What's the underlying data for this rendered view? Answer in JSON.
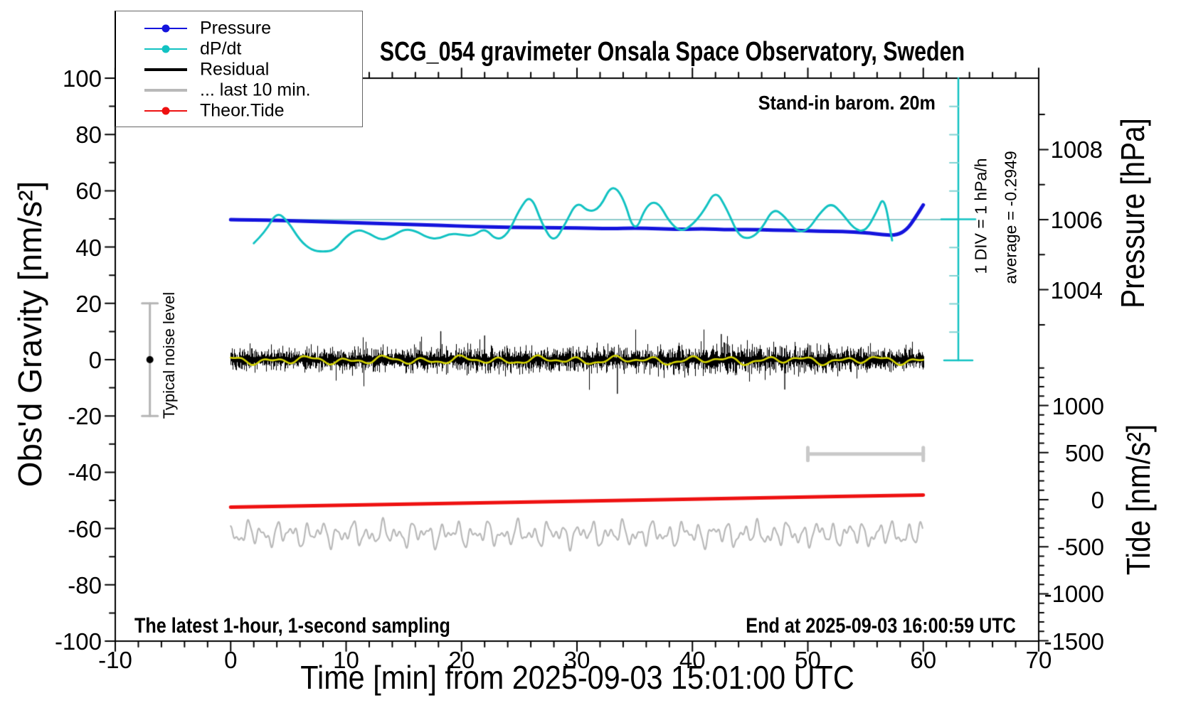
{
  "title": "SCG_054 gravimeter Onsala Space Observatory, Sweden",
  "axis_labels": {
    "left": "Obs'd Gravity [nm/s²]",
    "bottom": "Time [min] from 2025-09-03 15:01:00 UTC",
    "right_pressure": "Pressure [hPa]",
    "right_tide": "Tide [nm/s²]"
  },
  "annotations": {
    "stand_in": "Stand-in barom. 20m",
    "div_scale": "1 DIV = 1 hPa/h",
    "average": "average = -0.2949",
    "noise_level": "Typical noise level",
    "sampling": "The latest 1-hour, 1-second sampling",
    "end_at": "End at 2025-09-03 16:00:59 UTC"
  },
  "legend": {
    "items": [
      {
        "label": "Pressure",
        "color": "#1414dd",
        "dot": true,
        "thickness": 2.5
      },
      {
        "label": "dP/dt",
        "color": "#12c2c2",
        "dot": true,
        "thickness": 2.5
      },
      {
        "label": "Residual",
        "color": "#000000",
        "dot": false,
        "thickness": 4.5
      },
      {
        "label": "... last 10 min.",
        "color": "#b9b9b9",
        "dot": false,
        "thickness": 4.5
      },
      {
        "label": "Theor.Tide",
        "color": "#ee1111",
        "dot": true,
        "thickness": 2.5
      }
    ]
  },
  "chart_data": {
    "type": "line",
    "title": "SCG_054 gravimeter Onsala Space Observatory, Sweden",
    "xlabel": "Time [min] from 2025-09-03 15:01:00 UTC",
    "axes": {
      "x": {
        "min": -10,
        "max": 70,
        "major": 10,
        "minor": 2,
        "ticks": [
          -10,
          0,
          10,
          20,
          30,
          40,
          50,
          60,
          70
        ]
      },
      "gravity": {
        "label": "Obs'd Gravity [nm/s²]",
        "min": -100,
        "max": 100,
        "major": 20,
        "minor": 10,
        "ticks": [
          100,
          80,
          60,
          40,
          20,
          0,
          -20,
          -40,
          -60,
          -80,
          -100
        ]
      },
      "pressure": {
        "label": "Pressure [hPa]",
        "ticks": [
          1008,
          1006,
          1004
        ],
        "minor_ticks": [
          1009,
          1007,
          1005,
          1003
        ],
        "reference": 1006
      },
      "tide": {
        "label": "Tide [nm/s²]",
        "min": -1500,
        "max": 1400,
        "major": 500,
        "minor": 100,
        "ticks": [
          1000,
          500,
          0,
          -500,
          -1000,
          -1500
        ]
      },
      "dpdt": {
        "div_label": "1 DIV = 1 hPa/h",
        "div_unit_hpa_per_h": 1,
        "average": -0.2949
      }
    },
    "series": [
      {
        "name": "Pressure",
        "unit": "hPa",
        "color": "#1414dd",
        "points": [
          [
            0,
            1006.0
          ],
          [
            3,
            1005.99
          ],
          [
            6,
            1005.96
          ],
          [
            9,
            1005.93
          ],
          [
            12,
            1005.9
          ],
          [
            15,
            1005.87
          ],
          [
            18,
            1005.84
          ],
          [
            21,
            1005.8
          ],
          [
            24,
            1005.78
          ],
          [
            27,
            1005.77
          ],
          [
            30,
            1005.76
          ],
          [
            33,
            1005.74
          ],
          [
            35,
            1005.76
          ],
          [
            37,
            1005.74
          ],
          [
            39,
            1005.72
          ],
          [
            41,
            1005.74
          ],
          [
            43,
            1005.71
          ],
          [
            45,
            1005.72
          ],
          [
            47,
            1005.7
          ],
          [
            49,
            1005.69
          ],
          [
            51,
            1005.67
          ],
          [
            53,
            1005.66
          ],
          [
            55,
            1005.63
          ],
          [
            56.5,
            1005.57
          ],
          [
            57.7,
            1005.55
          ],
          [
            58.6,
            1005.72
          ],
          [
            59.3,
            1006.05
          ],
          [
            60,
            1006.42
          ]
        ]
      },
      {
        "name": "dP/dt",
        "unit": "hPa/h",
        "color": "#12c2c2",
        "points": [
          [
            2,
            -0.85
          ],
          [
            3,
            -0.45
          ],
          [
            4,
            0.28
          ],
          [
            5,
            -0.1
          ],
          [
            6,
            -0.75
          ],
          [
            7,
            -1.1
          ],
          [
            8,
            -1.15
          ],
          [
            9,
            -1.1
          ],
          [
            10,
            -0.6
          ],
          [
            11,
            -0.35
          ],
          [
            12,
            -0.5
          ],
          [
            13,
            -0.75
          ],
          [
            14,
            -0.6
          ],
          [
            15,
            -0.35
          ],
          [
            16,
            -0.4
          ],
          [
            17,
            -0.65
          ],
          [
            18,
            -0.7
          ],
          [
            19,
            -0.5
          ],
          [
            20,
            -0.55
          ],
          [
            21,
            -0.6
          ],
          [
            22,
            -0.3
          ],
          [
            23,
            -0.75
          ],
          [
            24,
            -0.55
          ],
          [
            25,
            0.35
          ],
          [
            26,
            0.9
          ],
          [
            27,
            -0.2
          ],
          [
            28,
            -0.85
          ],
          [
            29,
            -0.15
          ],
          [
            30,
            0.65
          ],
          [
            31,
            0.25
          ],
          [
            32,
            0.4
          ],
          [
            33,
            1.25
          ],
          [
            34,
            0.8
          ],
          [
            35,
            -0.55
          ],
          [
            36,
            0.5
          ],
          [
            37,
            0.65
          ],
          [
            38,
            -0.1
          ],
          [
            39,
            -0.45
          ],
          [
            40,
            -0.2
          ],
          [
            41,
            0.3
          ],
          [
            42,
            1.05
          ],
          [
            43,
            0.35
          ],
          [
            44,
            -0.6
          ],
          [
            45,
            -0.7
          ],
          [
            46,
            -0.35
          ],
          [
            47,
            0.4
          ],
          [
            48,
            0.1
          ],
          [
            49,
            -0.45
          ],
          [
            50,
            -0.4
          ],
          [
            51,
            0.2
          ],
          [
            52,
            0.6
          ],
          [
            53,
            0.2
          ],
          [
            54,
            -0.35
          ],
          [
            55,
            -0.45
          ],
          [
            56,
            0.3
          ],
          [
            56.6,
            0.85
          ],
          [
            57.3,
            -0.75
          ]
        ]
      },
      {
        "name": "Residual",
        "unit": "nm/s²",
        "color": "#000000",
        "mean": 0,
        "typical_std": 2.3,
        "span_min": [
          0,
          60
        ],
        "spikes": [
          [
            18.2,
            10
          ],
          [
            22.0,
            8.5
          ],
          [
            33.5,
            -12
          ],
          [
            42.5,
            9.0
          ],
          [
            48.0,
            -10.5
          ]
        ]
      },
      {
        "name": "Residual smoothed",
        "unit": "nm/s²",
        "color": "#d2d200",
        "amplitude": 1.2
      },
      {
        "name": "... last 10 min.",
        "unit": "nm/s²",
        "color": "#b9b9b9",
        "display_offset_gravity": -62,
        "window_min": [
          50,
          60
        ],
        "amplitude": 5
      },
      {
        "name": "Theor.Tide",
        "unit": "nm/s² (tide axis)",
        "color": "#ee1111",
        "points": [
          [
            0,
            -80
          ],
          [
            15,
            -48
          ],
          [
            30,
            -16
          ],
          [
            45,
            17
          ],
          [
            60,
            50
          ]
        ]
      }
    ],
    "noise_level_bar": {
      "at_min": -7,
      "center": 0,
      "range": [
        -20,
        20
      ]
    },
    "last10_marker": {
      "from_min": 50,
      "to_min": 60,
      "at_gravity": -33.5
    },
    "reference_line": {
      "value_hpa": 1006,
      "color": "#8ccaca"
    }
  }
}
